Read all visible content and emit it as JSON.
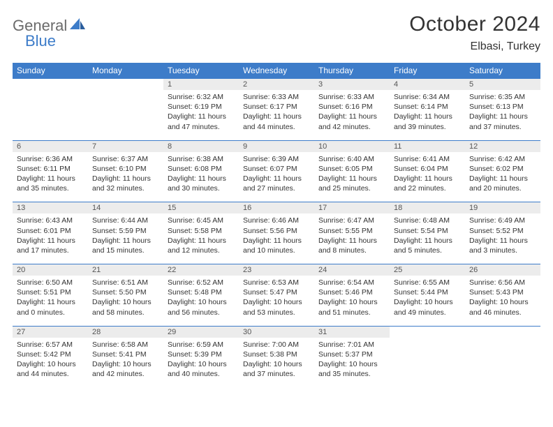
{
  "brand": {
    "name1": "General",
    "name2": "Blue"
  },
  "title": "October 2024",
  "location": "Elbasi, Turkey",
  "colors": {
    "header_bg": "#3d7cc9",
    "header_text": "#ffffff",
    "daynum_bg": "#ececec",
    "row_border": "#3d7cc9",
    "body_text": "#333333",
    "logo_gray": "#6b6b6b",
    "logo_blue": "#3d7cc9"
  },
  "weekdays": [
    "Sunday",
    "Monday",
    "Tuesday",
    "Wednesday",
    "Thursday",
    "Friday",
    "Saturday"
  ],
  "weeks": [
    [
      null,
      null,
      {
        "n": "1",
        "sr": "6:32 AM",
        "ss": "6:19 PM",
        "dl": "11 hours and 47 minutes."
      },
      {
        "n": "2",
        "sr": "6:33 AM",
        "ss": "6:17 PM",
        "dl": "11 hours and 44 minutes."
      },
      {
        "n": "3",
        "sr": "6:33 AM",
        "ss": "6:16 PM",
        "dl": "11 hours and 42 minutes."
      },
      {
        "n": "4",
        "sr": "6:34 AM",
        "ss": "6:14 PM",
        "dl": "11 hours and 39 minutes."
      },
      {
        "n": "5",
        "sr": "6:35 AM",
        "ss": "6:13 PM",
        "dl": "11 hours and 37 minutes."
      }
    ],
    [
      {
        "n": "6",
        "sr": "6:36 AM",
        "ss": "6:11 PM",
        "dl": "11 hours and 35 minutes."
      },
      {
        "n": "7",
        "sr": "6:37 AM",
        "ss": "6:10 PM",
        "dl": "11 hours and 32 minutes."
      },
      {
        "n": "8",
        "sr": "6:38 AM",
        "ss": "6:08 PM",
        "dl": "11 hours and 30 minutes."
      },
      {
        "n": "9",
        "sr": "6:39 AM",
        "ss": "6:07 PM",
        "dl": "11 hours and 27 minutes."
      },
      {
        "n": "10",
        "sr": "6:40 AM",
        "ss": "6:05 PM",
        "dl": "11 hours and 25 minutes."
      },
      {
        "n": "11",
        "sr": "6:41 AM",
        "ss": "6:04 PM",
        "dl": "11 hours and 22 minutes."
      },
      {
        "n": "12",
        "sr": "6:42 AM",
        "ss": "6:02 PM",
        "dl": "11 hours and 20 minutes."
      }
    ],
    [
      {
        "n": "13",
        "sr": "6:43 AM",
        "ss": "6:01 PM",
        "dl": "11 hours and 17 minutes."
      },
      {
        "n": "14",
        "sr": "6:44 AM",
        "ss": "5:59 PM",
        "dl": "11 hours and 15 minutes."
      },
      {
        "n": "15",
        "sr": "6:45 AM",
        "ss": "5:58 PM",
        "dl": "11 hours and 12 minutes."
      },
      {
        "n": "16",
        "sr": "6:46 AM",
        "ss": "5:56 PM",
        "dl": "11 hours and 10 minutes."
      },
      {
        "n": "17",
        "sr": "6:47 AM",
        "ss": "5:55 PM",
        "dl": "11 hours and 8 minutes."
      },
      {
        "n": "18",
        "sr": "6:48 AM",
        "ss": "5:54 PM",
        "dl": "11 hours and 5 minutes."
      },
      {
        "n": "19",
        "sr": "6:49 AM",
        "ss": "5:52 PM",
        "dl": "11 hours and 3 minutes."
      }
    ],
    [
      {
        "n": "20",
        "sr": "6:50 AM",
        "ss": "5:51 PM",
        "dl": "11 hours and 0 minutes."
      },
      {
        "n": "21",
        "sr": "6:51 AM",
        "ss": "5:50 PM",
        "dl": "10 hours and 58 minutes."
      },
      {
        "n": "22",
        "sr": "6:52 AM",
        "ss": "5:48 PM",
        "dl": "10 hours and 56 minutes."
      },
      {
        "n": "23",
        "sr": "6:53 AM",
        "ss": "5:47 PM",
        "dl": "10 hours and 53 minutes."
      },
      {
        "n": "24",
        "sr": "6:54 AM",
        "ss": "5:46 PM",
        "dl": "10 hours and 51 minutes."
      },
      {
        "n": "25",
        "sr": "6:55 AM",
        "ss": "5:44 PM",
        "dl": "10 hours and 49 minutes."
      },
      {
        "n": "26",
        "sr": "6:56 AM",
        "ss": "5:43 PM",
        "dl": "10 hours and 46 minutes."
      }
    ],
    [
      {
        "n": "27",
        "sr": "6:57 AM",
        "ss": "5:42 PM",
        "dl": "10 hours and 44 minutes."
      },
      {
        "n": "28",
        "sr": "6:58 AM",
        "ss": "5:41 PM",
        "dl": "10 hours and 42 minutes."
      },
      {
        "n": "29",
        "sr": "6:59 AM",
        "ss": "5:39 PM",
        "dl": "10 hours and 40 minutes."
      },
      {
        "n": "30",
        "sr": "7:00 AM",
        "ss": "5:38 PM",
        "dl": "10 hours and 37 minutes."
      },
      {
        "n": "31",
        "sr": "7:01 AM",
        "ss": "5:37 PM",
        "dl": "10 hours and 35 minutes."
      },
      null,
      null
    ]
  ],
  "labels": {
    "sunrise": "Sunrise:",
    "sunset": "Sunset:",
    "daylight": "Daylight:"
  }
}
